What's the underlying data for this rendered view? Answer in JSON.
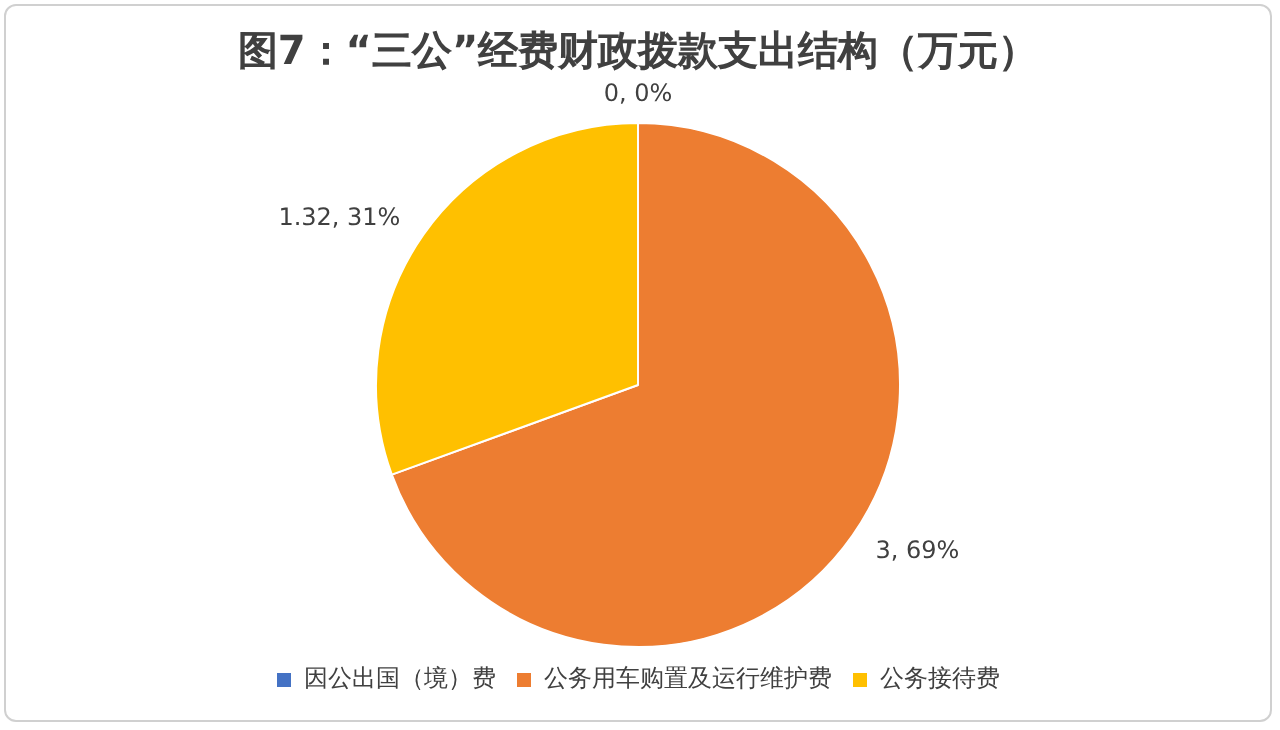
{
  "chart_data": {
    "type": "pie",
    "title": "图7：“三公”经费财政拨款支出结构（万元）",
    "categories": [
      "因公出国（境）费",
      "公务用车购置及运行维护费",
      "公务接待费"
    ],
    "values": [
      0,
      3,
      1.32
    ],
    "colors": [
      "#4472c4",
      "#ed7d31",
      "#ffc000"
    ],
    "value_labels": [
      "0, 0%",
      "3, 69%",
      "1.32, 31%"
    ],
    "legend": "bottom"
  }
}
